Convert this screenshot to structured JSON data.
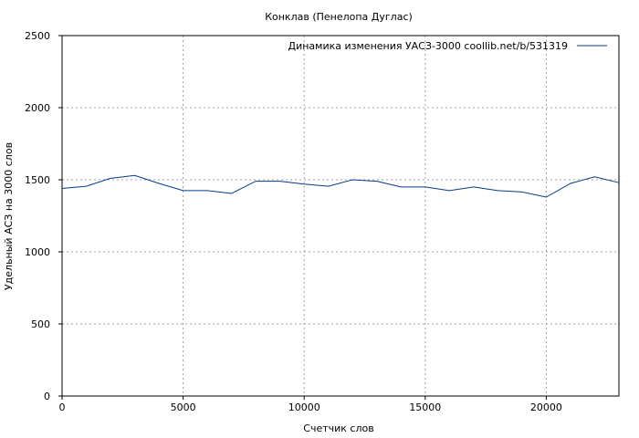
{
  "chart_data": {
    "type": "line",
    "title": "Конклав (Пенелопа Дуглас)",
    "xlabel": "Счетчик слов",
    "ylabel": "Удельный АСЗ на 3000 слов",
    "xlim": [
      0,
      23000
    ],
    "ylim": [
      0,
      2500
    ],
    "xticks": [
      0,
      5000,
      10000,
      15000,
      20000
    ],
    "yticks": [
      0,
      500,
      1000,
      1500,
      2000,
      2500
    ],
    "grid": true,
    "legend_position": "top-right",
    "series": [
      {
        "name": "Динамика изменения УАСЗ-3000  coollib.net/b/531319",
        "color": "#003a8c",
        "x": [
          0,
          1000,
          2000,
          3000,
          4000,
          5000,
          6000,
          7000,
          8000,
          9000,
          10000,
          11000,
          12000,
          13000,
          14000,
          15000,
          16000,
          17000,
          18000,
          19000,
          20000,
          21000,
          22000,
          23000
        ],
        "y": [
          1440,
          1455,
          1510,
          1530,
          1475,
          1425,
          1425,
          1405,
          1490,
          1490,
          1470,
          1455,
          1500,
          1490,
          1450,
          1450,
          1425,
          1450,
          1425,
          1415,
          1380,
          1475,
          1520,
          1480
        ]
      }
    ]
  }
}
